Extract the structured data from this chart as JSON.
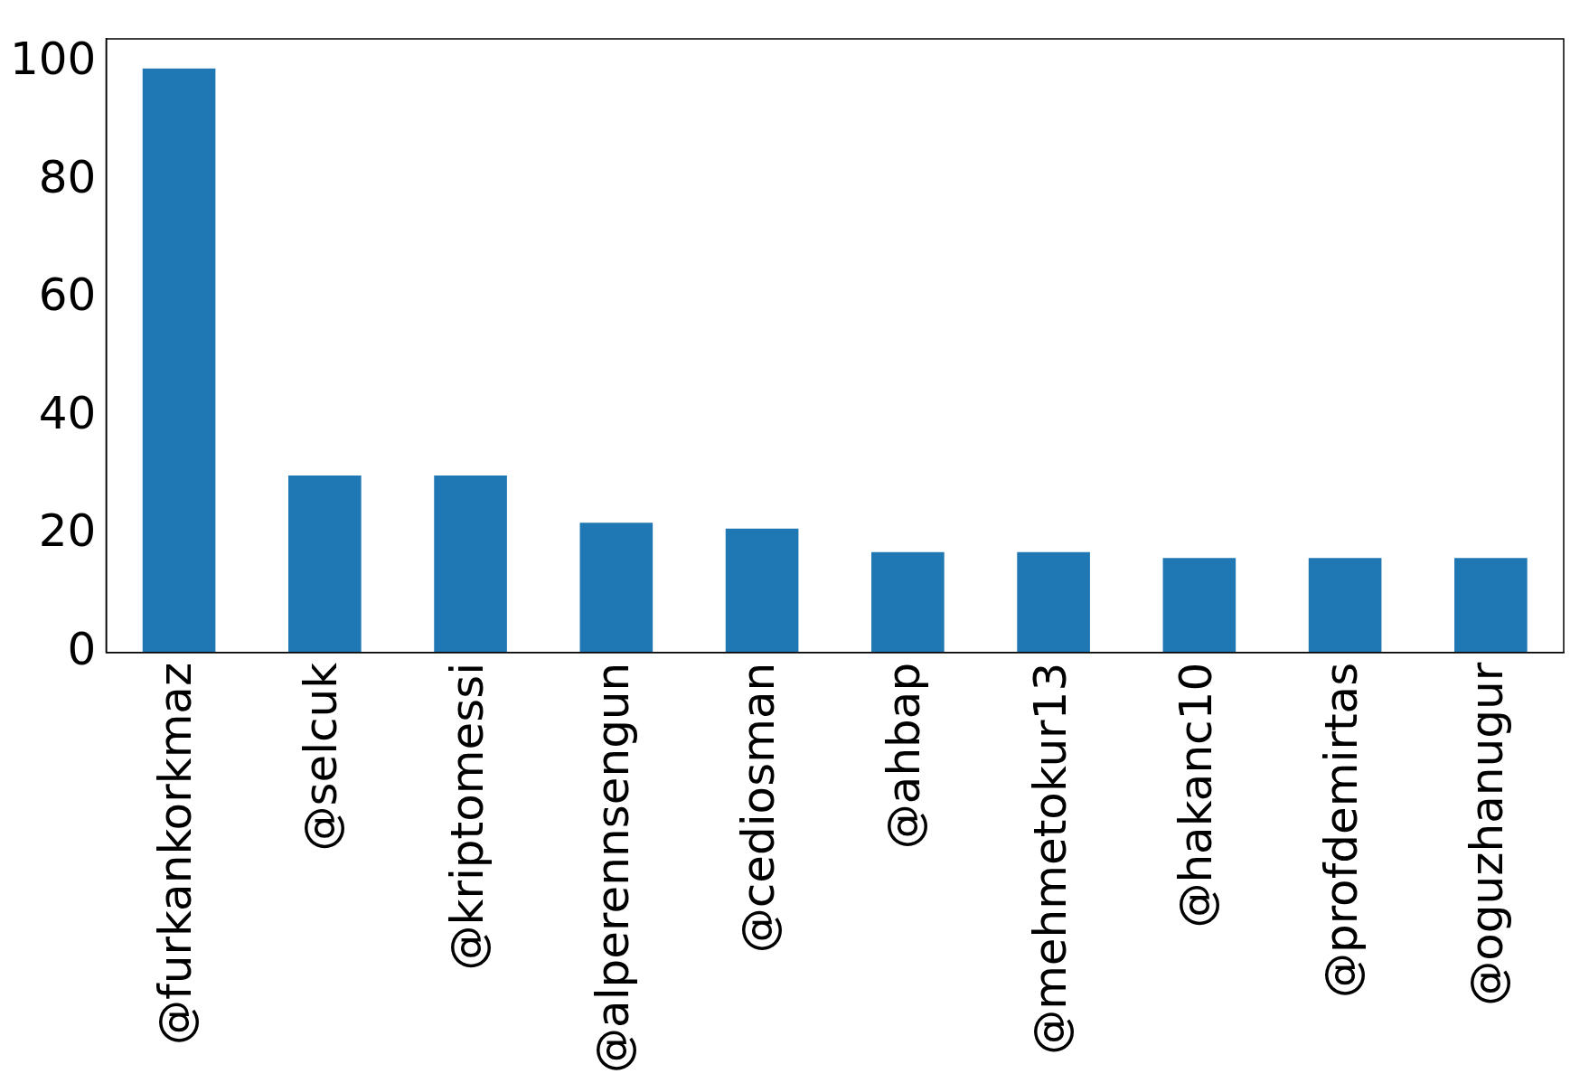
{
  "chart_data": {
    "type": "bar",
    "categories": [
      "@furkankorkmaz",
      "@selcuk",
      "@kriptomessi",
      "@alperennsengun",
      "@cediosman",
      "@ahbap",
      "@mehmetokur13",
      "@hakanc10",
      "@profdemirtas",
      "@oguzhanugur"
    ],
    "values": [
      99,
      30,
      30,
      22,
      21,
      17,
      17,
      16,
      16,
      16
    ],
    "color": "#1f77b4",
    "ylim": [
      0,
      104
    ],
    "yticks": [
      0,
      20,
      40,
      60,
      80,
      100
    ],
    "grid": false,
    "legend": false
  }
}
